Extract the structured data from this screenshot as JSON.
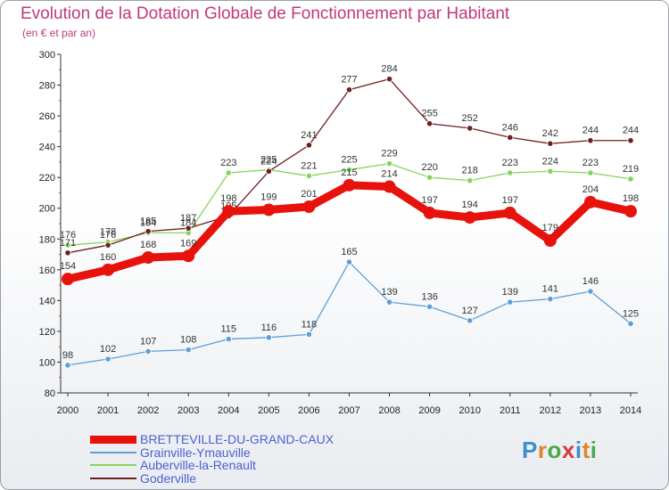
{
  "header": {
    "title": "Evolution de la Dotation Globale de Fonctionnement par Habitant",
    "subtitle": "(en € et par an)"
  },
  "logo": {
    "text": "Proxiti"
  },
  "chart_data": {
    "type": "line",
    "title": "Evolution de la Dotation Globale de Fonctionnement par Habitant",
    "subtitle": "(en € et par an)",
    "x": [
      "2000",
      "2001",
      "2002",
      "2003",
      "2004",
      "2005",
      "2006",
      "2007",
      "2008",
      "2009",
      "2010",
      "2011",
      "2012",
      "2013",
      "2014"
    ],
    "ylim": [
      80,
      300
    ],
    "yticks": [
      80,
      100,
      120,
      140,
      160,
      180,
      200,
      220,
      240,
      260,
      280,
      300
    ],
    "grid": false,
    "legend_position": "bottom-left",
    "series": [
      {
        "name": "BRETTEVILLE-DU-GRAND-CAUX",
        "color": "#e8120c",
        "values": [
          154,
          160,
          168,
          169,
          198,
          199,
          201,
          215,
          214,
          197,
          194,
          197,
          179,
          204,
          198
        ]
      },
      {
        "name": "Grainville-Ymauville",
        "color": "#5f9fd4",
        "values": [
          98,
          102,
          107,
          108,
          115,
          116,
          118,
          165,
          139,
          136,
          127,
          139,
          141,
          146,
          125
        ]
      },
      {
        "name": "Auberville-la-Renault",
        "color": "#86d45a",
        "values": [
          176,
          178,
          184,
          184,
          223,
          225,
          221,
          225,
          229,
          220,
          218,
          223,
          224,
          223,
          219
        ]
      },
      {
        "name": "Goderville",
        "color": "#6e1f1f",
        "values": [
          171,
          176,
          185,
          187,
          195,
          224,
          241,
          277,
          284,
          255,
          252,
          246,
          242,
          244,
          244
        ]
      }
    ]
  }
}
